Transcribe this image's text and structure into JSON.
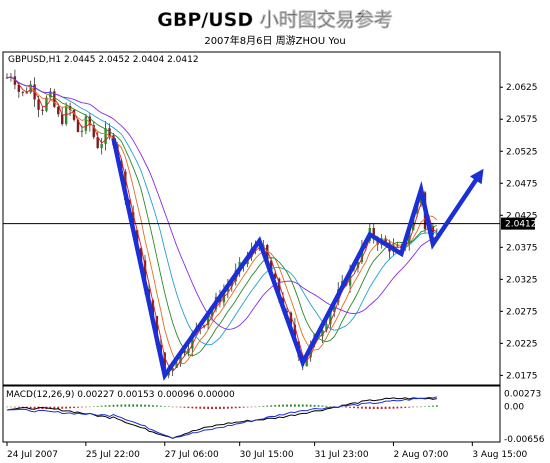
{
  "header": {
    "title": "GBP/USD 小时图交易参考",
    "subtitle": "2007年8月6日    周游ZHOU You"
  },
  "chart_data": {
    "type": "candlestick",
    "symbol_info": "GBPUSD,H1  2.0445 2.0452 2.0404 2.0412",
    "price_axis": {
      "ticks": [
        "2.0625",
        "2.0575",
        "2.0525",
        "2.0475",
        "2.0425",
        "2.0375",
        "2.0325",
        "2.0275",
        "2.0225",
        "2.0175"
      ],
      "range": [
        2.016,
        2.068
      ]
    },
    "current_price": {
      "value": 2.0412,
      "label": "2.0412"
    },
    "time_axis": {
      "ticks": [
        "24 Jul 2007",
        "25 Jul 22:00",
        "27 Jul 06:00",
        "30 Jul 15:00",
        "31 Jul 23:00",
        "2 Aug 07:00",
        "3 Aug 15:00"
      ]
    },
    "zigzag": {
      "color": "#1a2fd6",
      "points": [
        [
          27,
          2.0545
        ],
        [
          40,
          2.0175
        ],
        [
          64,
          2.0385
        ],
        [
          75,
          2.0195
        ],
        [
          92,
          2.0395
        ],
        [
          100,
          2.0365
        ],
        [
          105,
          2.0465
        ],
        [
          108,
          2.038
        ],
        [
          120,
          2.049
        ]
      ]
    },
    "candles_count": 125,
    "macd": {
      "label": "MACD(12,26,9) 0.00227 0.00153 0.00096 0.00000",
      "ticks": [
        "0.00273",
        "0.00",
        "-0.00656"
      ],
      "range": [
        -0.007,
        0.003
      ]
    }
  }
}
